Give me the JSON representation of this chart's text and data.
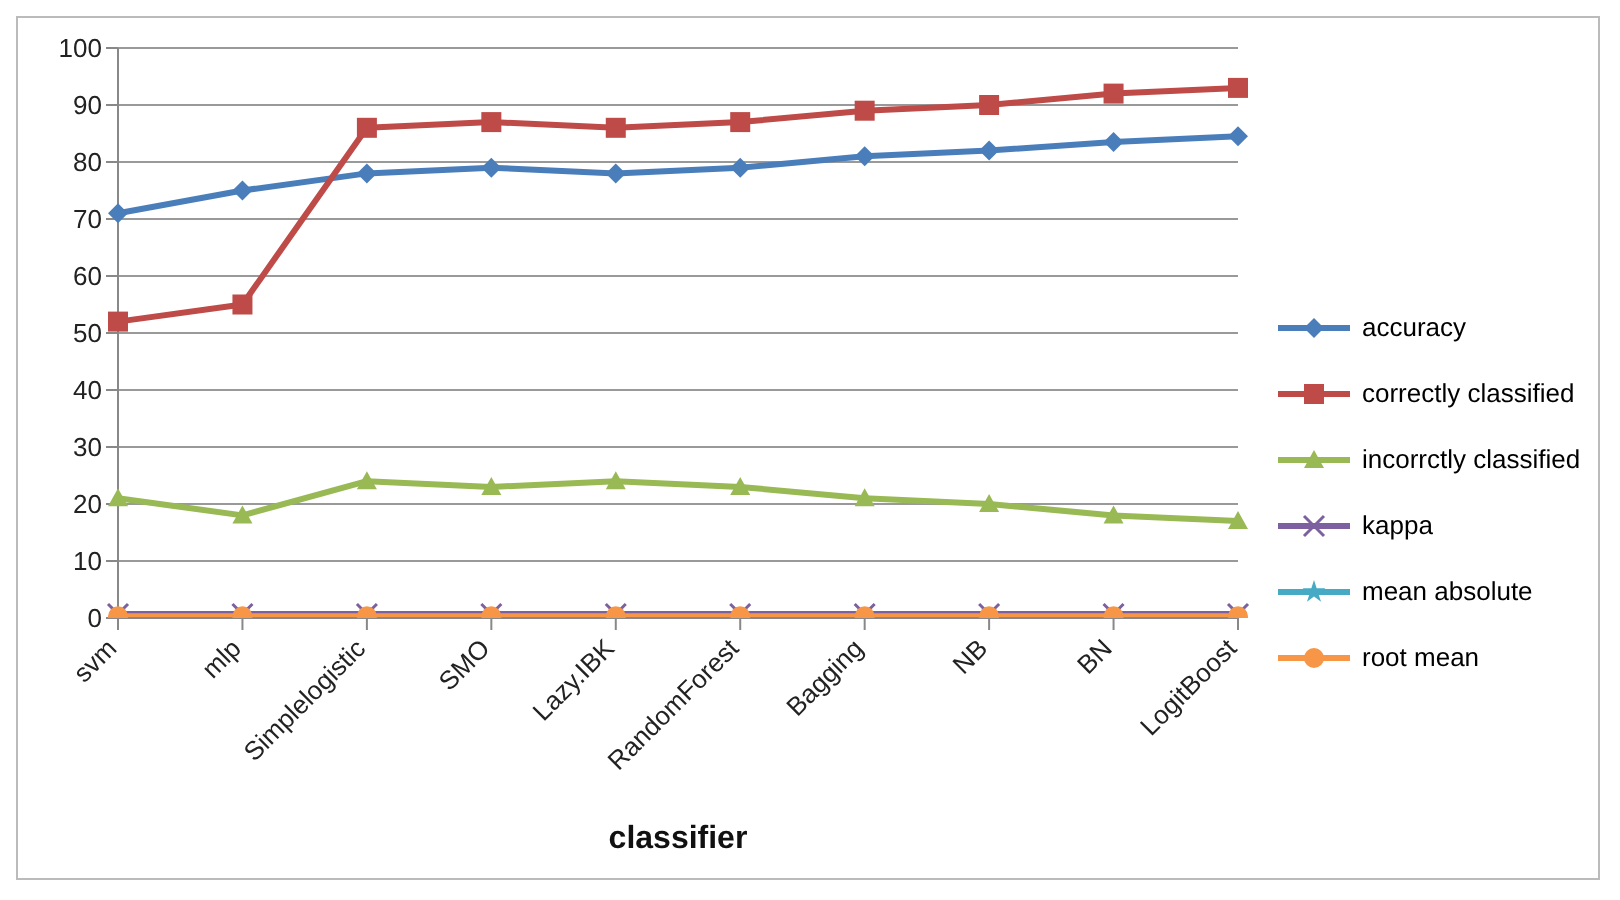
{
  "chart_data": {
    "type": "line",
    "xlabel": "classifier",
    "categories": [
      "svm",
      "mlp",
      "Simplelogistic",
      "SMO",
      "Lazy.IBK",
      "RandomForest",
      "Bagging",
      "NB",
      "BN",
      "LogitBoost"
    ],
    "ylim": [
      0,
      100
    ],
    "yticks": [
      0,
      10,
      20,
      30,
      40,
      50,
      60,
      70,
      80,
      90,
      100
    ],
    "grid": "y",
    "legend": "right",
    "series": [
      {
        "name": "accuracy",
        "color": "#4a7ebb",
        "marker": "diamond",
        "values": [
          71,
          75,
          78,
          79,
          78,
          79,
          81,
          82,
          83.5,
          84.5
        ]
      },
      {
        "name": "correctly classified",
        "color": "#be4b48",
        "marker": "square",
        "values": [
          52,
          55,
          86,
          87,
          86,
          87,
          89,
          90,
          92,
          93
        ]
      },
      {
        "name": "incorrctly classified",
        "color": "#98b954",
        "marker": "triangle",
        "values": [
          21,
          18,
          24,
          23,
          24,
          23,
          21,
          20,
          18,
          17
        ]
      },
      {
        "name": "kappa",
        "color": "#7d60a0",
        "marker": "cross",
        "values": [
          0.7,
          0.7,
          0.7,
          0.7,
          0.7,
          0.7,
          0.7,
          0.7,
          0.7,
          0.7
        ]
      },
      {
        "name": "mean absolute",
        "color": "#46aac5",
        "marker": "star",
        "values": [
          null,
          null,
          null,
          null,
          null,
          null,
          null,
          null,
          null,
          null
        ]
      },
      {
        "name": "root mean",
        "color": "#f79646",
        "marker": "circle",
        "values": [
          0.3,
          0.3,
          0.3,
          0.3,
          0.3,
          0.3,
          0.3,
          0.3,
          0.3,
          0.3
        ]
      }
    ]
  }
}
